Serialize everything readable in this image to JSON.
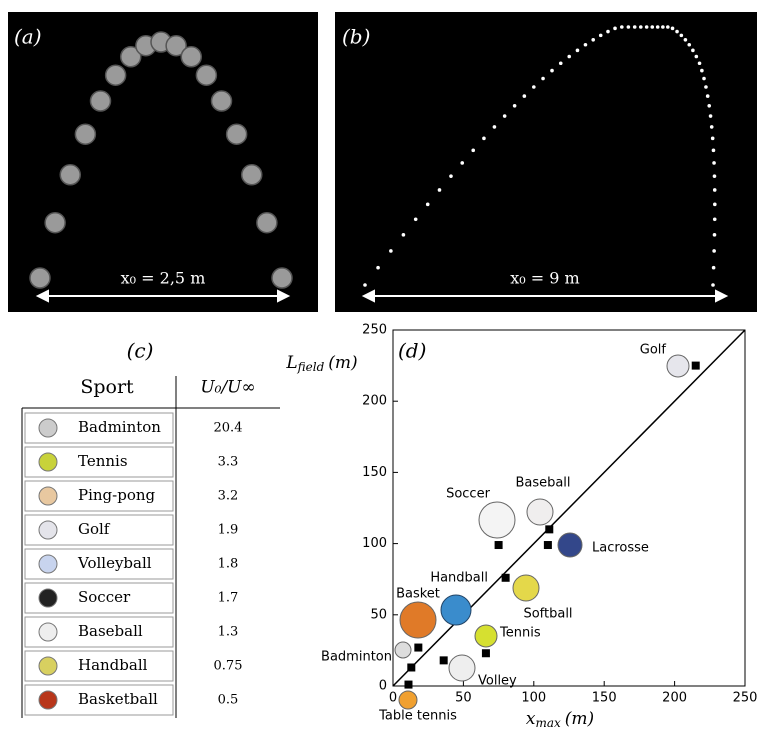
{
  "panels": {
    "a": {
      "label": "(a)",
      "annotation": "x₀ = 2,5 m"
    },
    "b": {
      "label": "(b)",
      "annotation": "x₀ = 9 m"
    }
  },
  "table": {
    "label": "(c)",
    "header": [
      "Sport",
      "U₀/U∞"
    ],
    "rows": [
      [
        "Badminton",
        20.4
      ],
      [
        "Tennis",
        3.3
      ],
      [
        "Ping-pong",
        3.2
      ],
      [
        "Golf",
        1.9
      ],
      [
        "Volleyball",
        1.8
      ],
      [
        "Soccer",
        1.7
      ],
      [
        "Baseball",
        1.3
      ],
      [
        "Handball",
        0.75
      ],
      [
        "Basketball",
        0.5
      ]
    ]
  },
  "chart_data": {
    "type": "scatter",
    "panel_label": "(d)",
    "xlabel": {
      "symbol": "x",
      "subscript": "max",
      "unit": "(m)"
    },
    "ylabel": {
      "symbol": "L",
      "subscript": "field",
      "unit": "(m)"
    },
    "labels": [
      "Golf",
      "Baseball",
      "Lacrosse",
      "Soccer",
      "Handball",
      "Basket",
      "Tennis",
      "Volley",
      "Badminton",
      "Table tennis"
    ],
    "x": [
      215,
      111,
      110,
      75,
      80,
      18,
      66,
      36,
      13,
      11
    ],
    "y": [
      225,
      110,
      99,
      99,
      76,
      27,
      23,
      18,
      13,
      1
    ],
    "annotations": [
      "Softball"
    ],
    "color": "#000000",
    "xlim": [
      0,
      250
    ],
    "ylim": [
      0,
      250
    ],
    "xticks": [
      0,
      50,
      100,
      150,
      200,
      250
    ],
    "yticks": [
      0,
      50,
      100,
      150,
      200,
      250
    ]
  }
}
